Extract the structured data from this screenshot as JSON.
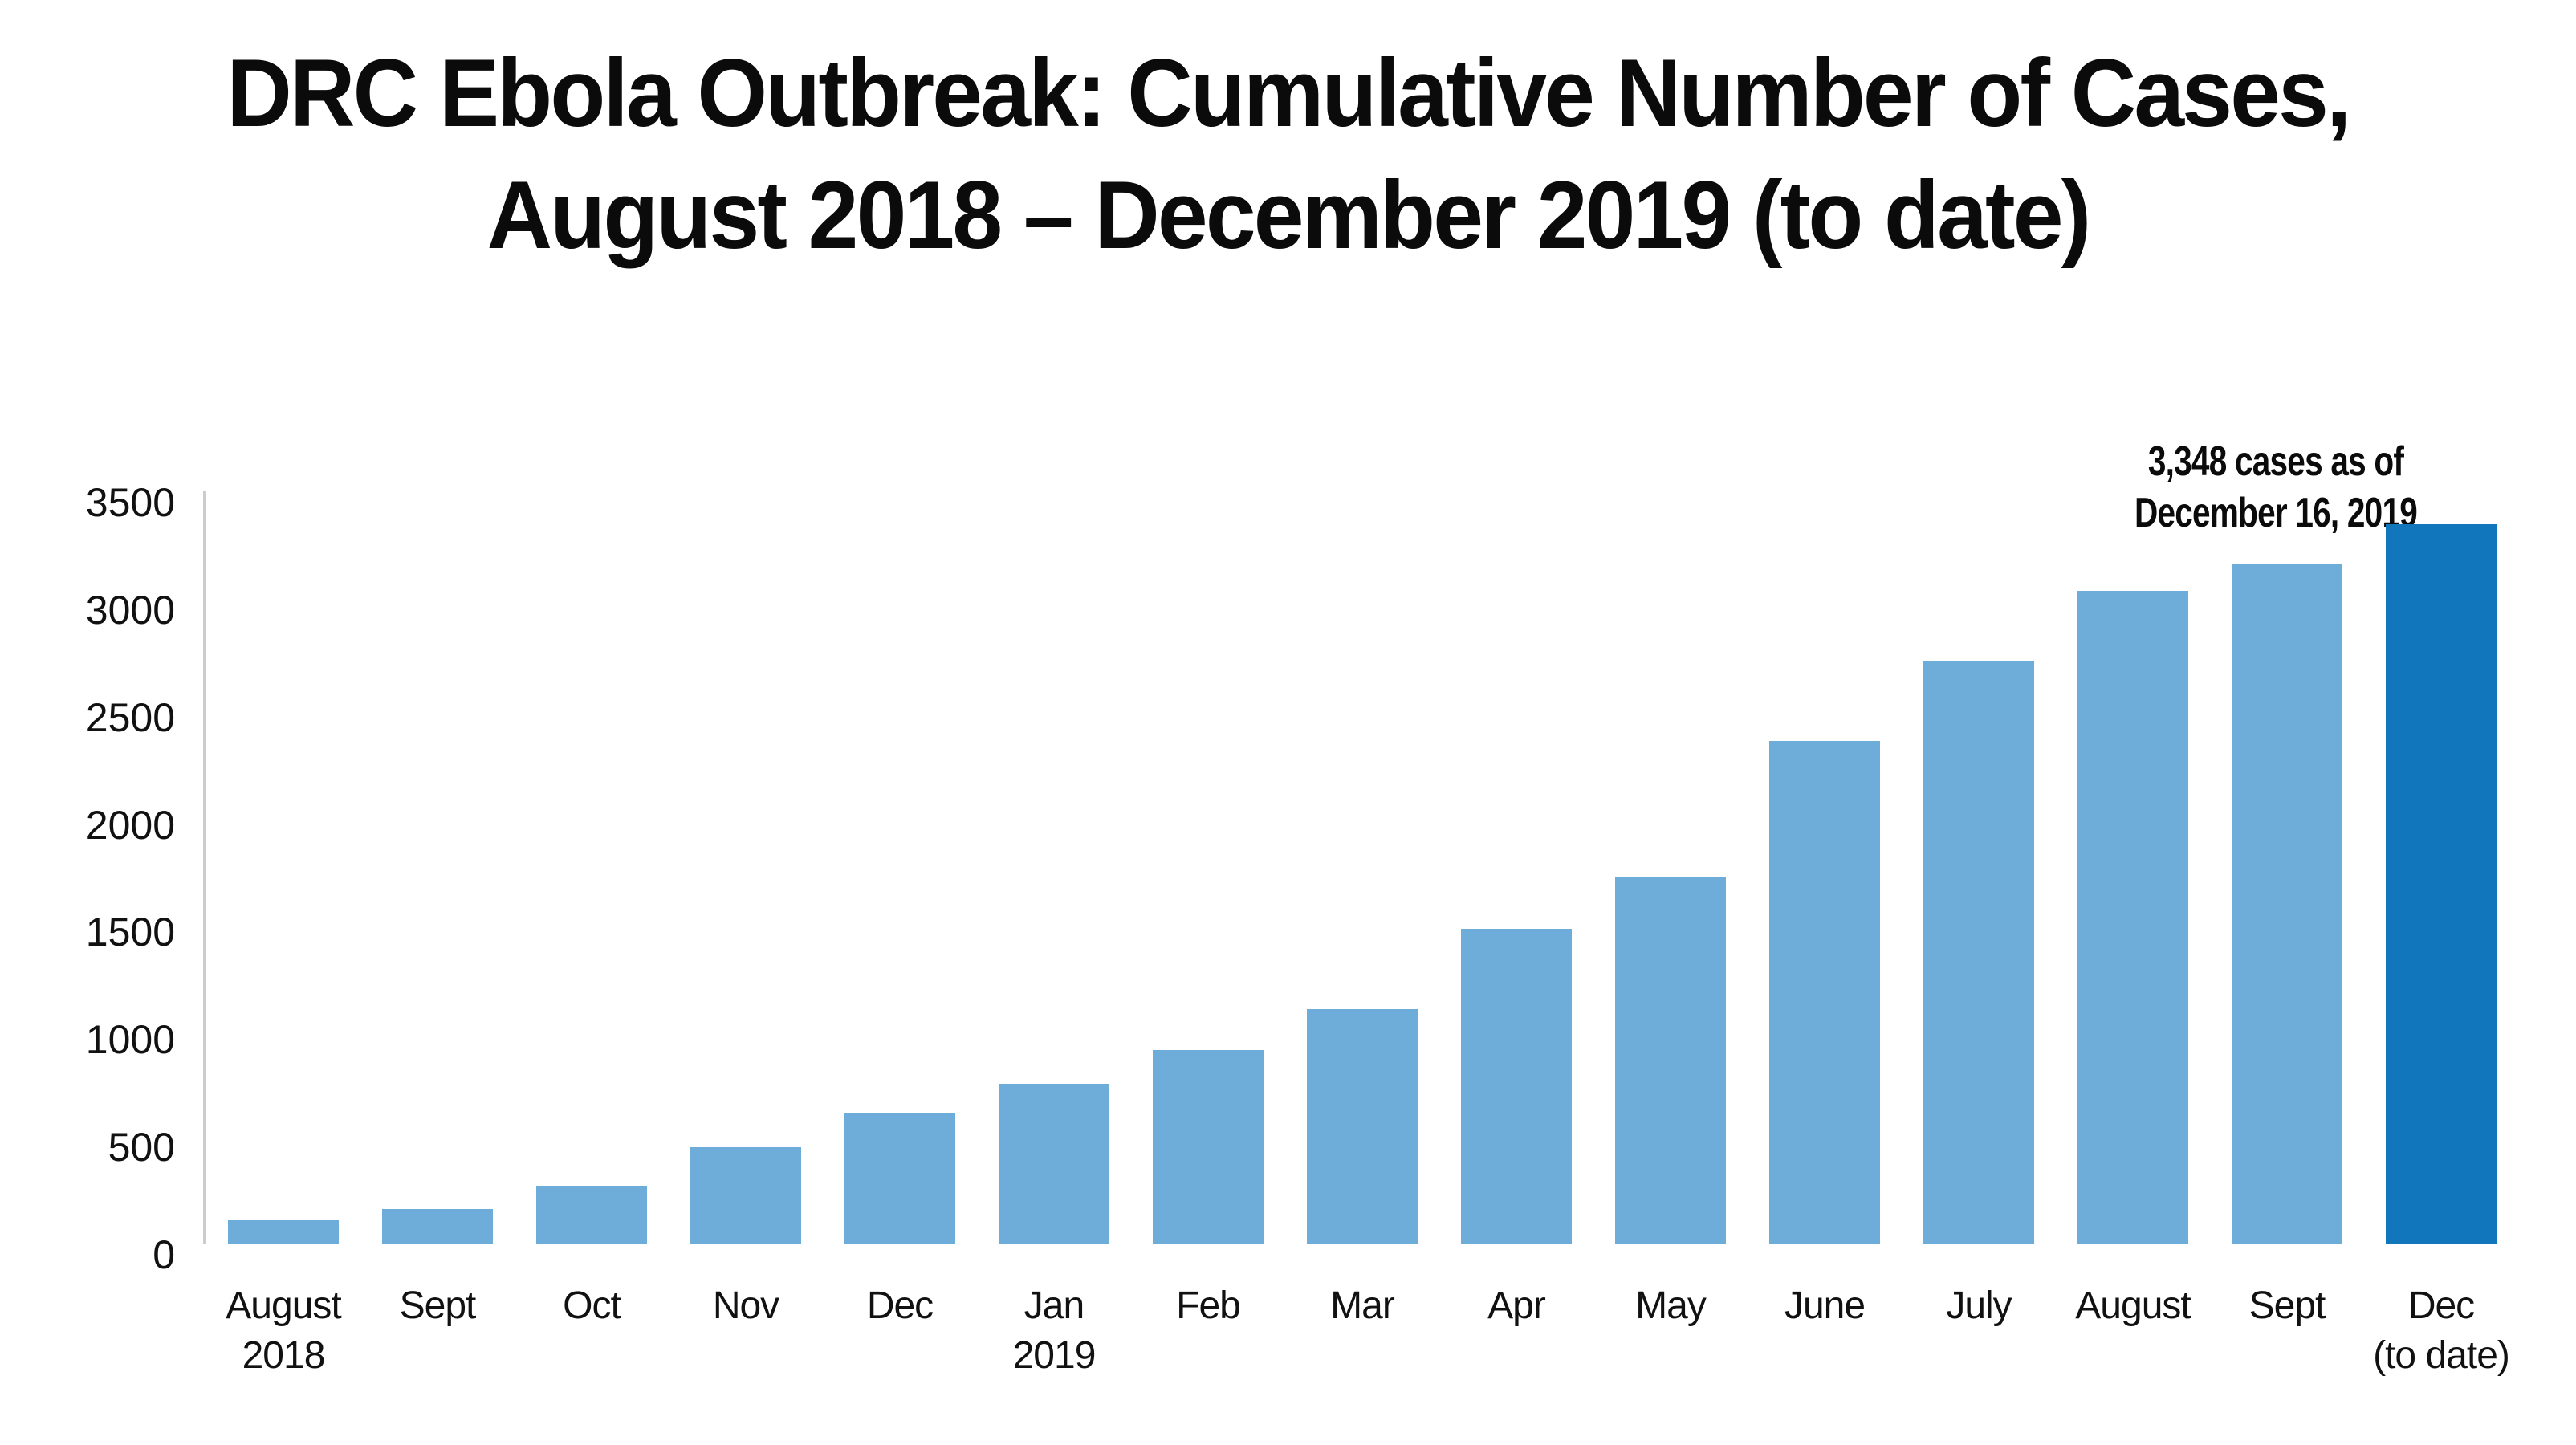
{
  "title": {
    "line1": "DRC Ebola Outbreak: Cumulative Number of Cases,",
    "line2": "August 2018 – December 2019 (to date)"
  },
  "annotation": {
    "line1": "3,348 cases as of",
    "line2": "December 16, 2019"
  },
  "colors": {
    "bar": "#6EADD9",
    "bar_highlight": "#1176BC",
    "axis_line": "#CCCCCC",
    "text": "#0B0B0B"
  },
  "y_axis": {
    "tick_labels": [
      "0",
      "500",
      "1000",
      "1500",
      "2000",
      "2500",
      "3000",
      "3500"
    ],
    "tick_values": [
      0,
      500,
      1000,
      1500,
      2000,
      2500,
      3000,
      3500
    ]
  },
  "x_labels": [
    [
      "August",
      "2018"
    ],
    [
      "Sept"
    ],
    [
      "Oct"
    ],
    [
      "Nov"
    ],
    [
      "Dec"
    ],
    [
      "Jan",
      "2019"
    ],
    [
      "Feb"
    ],
    [
      "Mar"
    ],
    [
      "Apr"
    ],
    [
      "May"
    ],
    [
      "June"
    ],
    [
      "July"
    ],
    [
      "August"
    ],
    [
      "Sept"
    ],
    [
      "Dec",
      "(to date)"
    ]
  ],
  "chart_data": {
    "type": "bar",
    "title": "DRC Ebola Outbreak: Cumulative Number of Cases, August 2018 – December 2019 (to date)",
    "categories": [
      "August 2018",
      "Sept",
      "Oct",
      "Nov",
      "Dec",
      "Jan 2019",
      "Feb",
      "Mar",
      "Apr",
      "May",
      "June",
      "July",
      "August",
      "Sept",
      "Dec (to date)"
    ],
    "values": [
      110,
      160,
      270,
      450,
      610,
      745,
      900,
      1090,
      1465,
      1705,
      2340,
      2710,
      3035,
      3165,
      3348
    ],
    "highlight_index": 14,
    "highlight_annotation": "3,348 cases as of December 16, 2019",
    "xlabel": "",
    "ylabel": "",
    "ylim": [
      0,
      3500
    ],
    "y_tick_step": 500,
    "grid": false,
    "legend": false
  }
}
